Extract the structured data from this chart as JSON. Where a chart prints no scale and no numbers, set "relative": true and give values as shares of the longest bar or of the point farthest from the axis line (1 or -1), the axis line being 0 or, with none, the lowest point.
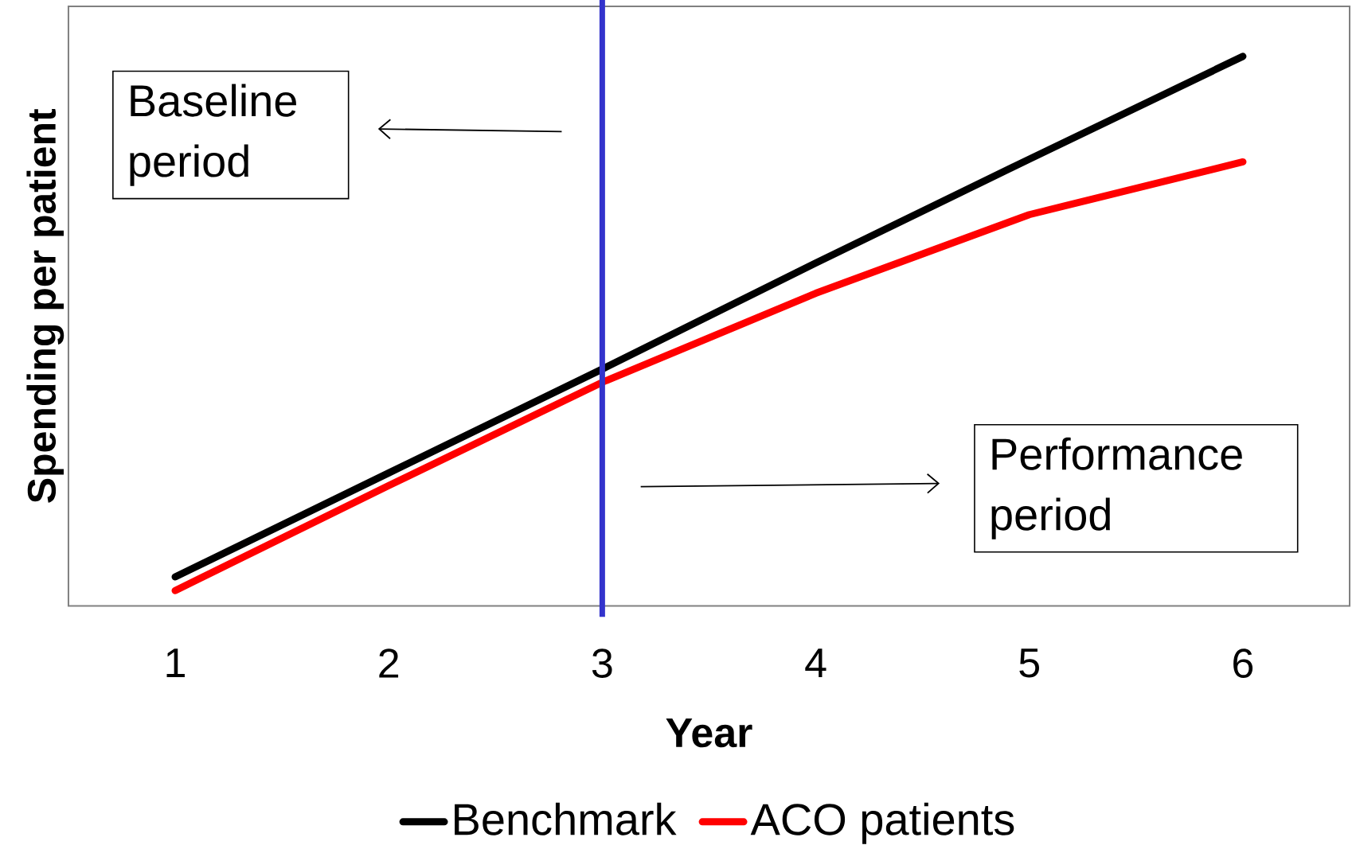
{
  "chart_data": {
    "type": "line",
    "xlabel": "Year",
    "ylabel": "Spending per patient",
    "x": [
      1,
      2,
      3,
      4,
      5,
      6
    ],
    "xlim": [
      0.5,
      6.5
    ],
    "xticks": [
      1,
      2,
      3,
      4,
      5,
      6
    ],
    "relative": true,
    "grid": false,
    "legend": "bottom",
    "marker": "none",
    "line_style": "solid",
    "series": [
      {
        "name": "Benchmark",
        "color": "#000000",
        "values": [
          0.053,
          0.242,
          0.431,
          0.624,
          0.813,
          1.0
        ]
      },
      {
        "name": "ACO patients",
        "color": "#ff0000",
        "values": [
          0.028,
          0.219,
          0.407,
          0.569,
          0.712,
          0.808
        ]
      }
    ],
    "ref_lines": [
      {
        "axis": "x",
        "value": 3,
        "color": "#3333cc"
      }
    ],
    "annotations": [
      "Baseline period",
      "Performance period"
    ]
  }
}
